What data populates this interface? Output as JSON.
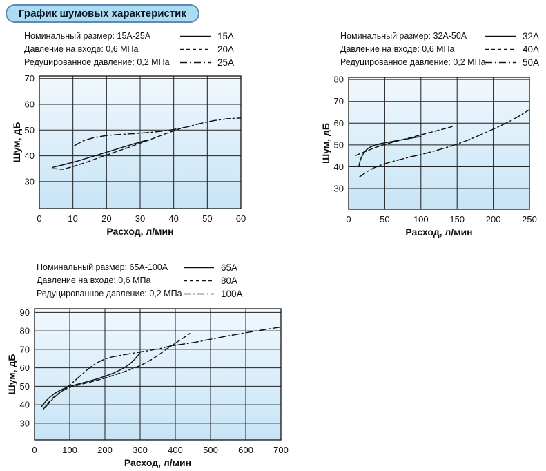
{
  "page": {
    "title": "График шумовых характеристик"
  },
  "colors": {
    "badge_fill": "#abdcf3",
    "badge_border": "#6089ae",
    "plot_top": "#f1f8fd",
    "plot_bottom": "#c7e4f6",
    "grid": "#1f1f1f",
    "stroke": "#121212",
    "text": "#121212"
  },
  "chart_data": [
    {
      "type": "line",
      "legend": {
        "info": [
          "Номинальный размер: 15А-25А",
          "Давление на входе: 0,6 МПа",
          "Редуцированное давление: 0,2 МПа"
        ],
        "entries": [
          {
            "style": "solid",
            "label": "15А"
          },
          {
            "style": "dashed",
            "label": "20А"
          },
          {
            "style": "dashdot",
            "label": "25А"
          }
        ]
      },
      "xlabel": "Расход, л/мин",
      "ylabel": "Шум, дБ",
      "xlim": [
        0,
        60
      ],
      "ylim": [
        19.5,
        71
      ],
      "x_ticks": [
        0,
        10,
        20,
        30,
        40,
        50,
        60
      ],
      "y_ticks": [
        30,
        40,
        50,
        60,
        70
      ],
      "series": [
        {
          "name": "15А",
          "style": "solid",
          "points": [
            [
              4,
              35.5
            ],
            [
              8,
              36.8
            ],
            [
              12,
              38.2
            ],
            [
              16,
              39.8
            ],
            [
              20,
              41.4
            ],
            [
              24,
              43
            ],
            [
              28,
              44.6
            ],
            [
              32,
              46.1
            ]
          ]
        },
        {
          "name": "20А",
          "style": "dashed",
          "points": [
            [
              4,
              35
            ],
            [
              7,
              34.8
            ],
            [
              10,
              35.8
            ],
            [
              14,
              37.5
            ],
            [
              18,
              39.4
            ],
            [
              22,
              41.2
            ],
            [
              26,
              43
            ],
            [
              30,
              44.9
            ],
            [
              34,
              46.8
            ],
            [
              38,
              48.8
            ],
            [
              42,
              50.6
            ]
          ]
        },
        {
          "name": "25А",
          "style": "dashdot",
          "points": [
            [
              10.5,
              44
            ],
            [
              13,
              45.8
            ],
            [
              16,
              47
            ],
            [
              20,
              47.9
            ],
            [
              24,
              48.3
            ],
            [
              28,
              48.6
            ],
            [
              32,
              49
            ],
            [
              36,
              49.5
            ],
            [
              40,
              50.2
            ],
            [
              44,
              51.2
            ],
            [
              48,
              52.6
            ],
            [
              52,
              53.7
            ],
            [
              56,
              54.4
            ],
            [
              60,
              54.7
            ]
          ]
        }
      ]
    },
    {
      "type": "line",
      "legend": {
        "info": [
          "Номинальный размер: 32А-50А",
          "Давление на входе: 0,6 МПа",
          "Редуцированное давление: 0,2 МПа"
        ],
        "entries": [
          {
            "style": "solid",
            "label": "32А"
          },
          {
            "style": "dashed",
            "label": "40А"
          },
          {
            "style": "dashdot",
            "label": "50А"
          }
        ]
      },
      "xlabel": "Расход, л/мин",
      "ylabel": "Шум, дБ",
      "xlim": [
        0,
        250
      ],
      "ylim": [
        20.5,
        81
      ],
      "x_ticks": [
        0,
        50,
        100,
        150,
        200,
        250
      ],
      "y_ticks": [
        30,
        40,
        50,
        60,
        70,
        80
      ],
      "series": [
        {
          "name": "32А",
          "style": "solid",
          "points": [
            [
              14,
              40
            ],
            [
              16,
              42.8
            ],
            [
              18,
              44.6
            ],
            [
              21,
              46.3
            ],
            [
              25,
              47.9
            ],
            [
              30,
              49
            ],
            [
              36,
              49.9
            ],
            [
              45,
              50.7
            ],
            [
              55,
              51.3
            ],
            [
              65,
              51.9
            ],
            [
              80,
              52.7
            ],
            [
              90,
              53.3
            ],
            [
              100,
              53.9
            ]
          ]
        },
        {
          "name": "40А",
          "style": "dashed",
          "points": [
            [
              10,
              45.2
            ],
            [
              18,
              46.3
            ],
            [
              27,
              47.5
            ],
            [
              36,
              48.7
            ],
            [
              45,
              49.7
            ],
            [
              55,
              50.7
            ],
            [
              67,
              51.8
            ],
            [
              80,
              52.9
            ],
            [
              95,
              54.2
            ],
            [
              110,
              55.5
            ],
            [
              125,
              56.8
            ],
            [
              137,
              57.8
            ],
            [
              145,
              58.6
            ]
          ]
        },
        {
          "name": "50А",
          "style": "dashdot",
          "points": [
            [
              15,
              35.3
            ],
            [
              25,
              37.7
            ],
            [
              35,
              39.5
            ],
            [
              45,
              40.8
            ],
            [
              55,
              41.9
            ],
            [
              70,
              43.2
            ],
            [
              85,
              44.5
            ],
            [
              100,
              45.6
            ],
            [
              115,
              46.9
            ],
            [
              130,
              48.3
            ],
            [
              145,
              49.8
            ],
            [
              160,
              51.6
            ],
            [
              175,
              53.6
            ],
            [
              190,
              55.8
            ],
            [
              205,
              58
            ],
            [
              220,
              60.4
            ],
            [
              235,
              63.1
            ],
            [
              250,
              66.2
            ]
          ]
        }
      ]
    },
    {
      "type": "line",
      "legend": {
        "info": [
          "Номинальный размер: 65А-100А",
          "Давление на входе: 0,6 МПа",
          "Редуцированное давление: 0,2 МПа"
        ],
        "entries": [
          {
            "style": "solid",
            "label": "65А"
          },
          {
            "style": "dashed",
            "label": "80А"
          },
          {
            "style": "dashdot",
            "label": "100А"
          }
        ]
      },
      "xlabel": "Расход, л/мин",
      "ylabel": "Шум, дБ",
      "xlim": [
        0,
        700
      ],
      "ylim": [
        21,
        92
      ],
      "x_ticks": [
        0,
        100,
        200,
        300,
        400,
        500,
        600,
        700
      ],
      "y_ticks": [
        30,
        40,
        50,
        60,
        70,
        80,
        90
      ],
      "series": [
        {
          "name": "65А",
          "style": "solid",
          "points": [
            [
              20,
              39
            ],
            [
              32,
              42
            ],
            [
              45,
              44.4
            ],
            [
              60,
              46.5
            ],
            [
              80,
              48.5
            ],
            [
              100,
              50
            ],
            [
              125,
              51.3
            ],
            [
              150,
              52.5
            ],
            [
              175,
              53.9
            ],
            [
              200,
              55.4
            ],
            [
              225,
              57.2
            ],
            [
              250,
              59.5
            ],
            [
              270,
              62
            ],
            [
              285,
              64.7
            ],
            [
              295,
              67
            ],
            [
              301,
              68.7
            ]
          ]
        },
        {
          "name": "80А",
          "style": "dashed",
          "points": [
            [
              25,
              37.6
            ],
            [
              40,
              41.3
            ],
            [
              55,
              44.2
            ],
            [
              72,
              46.7
            ],
            [
              90,
              48.6
            ],
            [
              105,
              49.7
            ],
            [
              130,
              51
            ],
            [
              160,
              52.4
            ],
            [
              195,
              54.2
            ],
            [
              230,
              56.3
            ],
            [
              265,
              58.6
            ],
            [
              300,
              61.2
            ],
            [
              330,
              64.2
            ],
            [
              355,
              67.3
            ],
            [
              380,
              70.8
            ],
            [
              405,
              74
            ],
            [
              425,
              76.5
            ],
            [
              441,
              78.6
            ]
          ]
        },
        {
          "name": "100А",
          "style": "dashdot",
          "points": [
            [
              30,
              38.5
            ],
            [
              45,
              41.8
            ],
            [
              60,
              44.7
            ],
            [
              75,
              47
            ],
            [
              90,
              49.2
            ],
            [
              105,
              51.5
            ],
            [
              120,
              54
            ],
            [
              135,
              56.5
            ],
            [
              150,
              59
            ],
            [
              165,
              61.2
            ],
            [
              180,
              63
            ],
            [
              200,
              64.8
            ],
            [
              220,
              65.9
            ],
            [
              245,
              66.8
            ],
            [
              270,
              67.6
            ],
            [
              300,
              68.6
            ],
            [
              330,
              69.5
            ],
            [
              360,
              70.6
            ],
            [
              385,
              71.8
            ],
            [
              420,
              72.8
            ],
            [
              460,
              74
            ],
            [
              500,
              75.5
            ],
            [
              550,
              77.3
            ],
            [
              600,
              79
            ],
            [
              650,
              80.6
            ],
            [
              700,
              82.1
            ]
          ]
        }
      ]
    }
  ]
}
